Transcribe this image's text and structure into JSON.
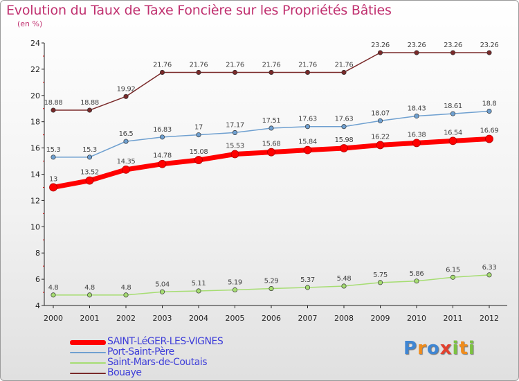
{
  "chart_data": {
    "type": "line",
    "title": "Evolution du Taux de Taxe Foncière sur les Propriétés Bâties",
    "subtitle": "(en %)",
    "xlabel": "",
    "ylabel": "",
    "x": [
      "2000",
      "2001",
      "2002",
      "2003",
      "2004",
      "2005",
      "2006",
      "2007",
      "2008",
      "2009",
      "2010",
      "2011",
      "2012"
    ],
    "ylim": [
      4,
      24
    ],
    "yticks": [
      "4",
      "6",
      "8",
      "10",
      "12",
      "14",
      "16",
      "18",
      "20",
      "22",
      "24"
    ],
    "grid": false,
    "legend_position": "bottom-left",
    "series": [
      {
        "name": "SAINT-LéGER-LES-VIGNES",
        "color": "#ff0000",
        "width": 7,
        "values": [
          13,
          13.52,
          14.35,
          14.78,
          15.08,
          15.53,
          15.68,
          15.84,
          15.98,
          16.22,
          16.38,
          16.54,
          16.69
        ],
        "labels": [
          "13",
          "13.52",
          "14.35",
          "14.78",
          "15.08",
          "15.53",
          "15.68",
          "15.84",
          "15.98",
          "16.22",
          "16.38",
          "16.54",
          "16.69"
        ]
      },
      {
        "name": "Port-Saint-Père",
        "color": "#6fa0d0",
        "width": 1.5,
        "values": [
          15.3,
          15.3,
          16.5,
          16.83,
          17,
          17.17,
          17.51,
          17.63,
          17.63,
          18.07,
          18.43,
          18.61,
          18.8
        ],
        "labels": [
          "15.3",
          "15.3",
          "16.5",
          "16.83",
          "17",
          "17.17",
          "17.51",
          "17.63",
          "17.63",
          "18.07",
          "18.43",
          "18.61",
          "18.8"
        ]
      },
      {
        "name": "Saint-Mars-de-Coutais",
        "color": "#a6dd72",
        "width": 1.5,
        "values": [
          4.8,
          4.8,
          4.8,
          5.04,
          5.11,
          5.19,
          5.29,
          5.37,
          5.48,
          5.75,
          5.86,
          6.15,
          6.33
        ],
        "labels": [
          "4.8",
          "4.8",
          "4.8",
          "5.04",
          "5.11",
          "5.19",
          "5.29",
          "5.37",
          "5.48",
          "5.75",
          "5.86",
          "6.15",
          "6.33"
        ]
      },
      {
        "name": "Bouaye",
        "color": "#7a2a2a",
        "width": 1.5,
        "values": [
          18.88,
          18.88,
          19.92,
          21.76,
          21.76,
          21.76,
          21.76,
          21.76,
          21.76,
          23.26,
          23.26,
          23.26,
          23.26
        ],
        "labels": [
          "18.88",
          "18.88",
          "19.92",
          "21.76",
          "21.76",
          "21.76",
          "21.76",
          "21.76",
          "21.76",
          "23.26",
          "23.26",
          "23.26",
          "23.26"
        ]
      }
    ]
  },
  "logo": {
    "letters": [
      "P",
      "r",
      "o",
      "x",
      "i",
      "t",
      "i"
    ],
    "colors": [
      "#3f86d3",
      "#f08c1c",
      "#3f86d3",
      "#e2412f",
      "#7cc242",
      "#f08c1c",
      "#7cc242"
    ]
  }
}
